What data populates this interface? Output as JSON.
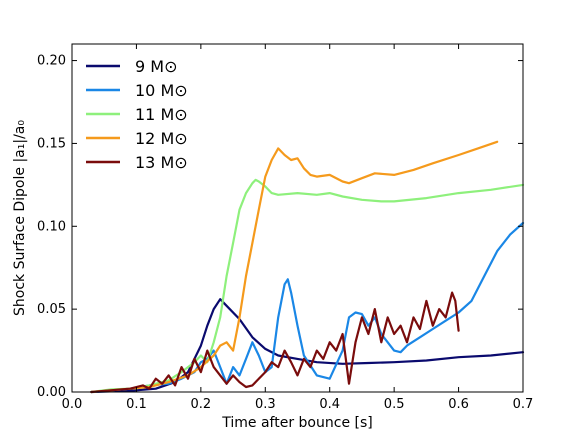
{
  "chart_data": {
    "type": "line",
    "xlabel": "Time after bounce [s]",
    "ylabel": "Shock Surface Dipole |a₁|/a₀",
    "xlim": [
      0.0,
      0.7
    ],
    "ylim": [
      0.0,
      0.21
    ],
    "xticks": [
      "0.0",
      "0.1",
      "0.2",
      "0.3",
      "0.4",
      "0.5",
      "0.6",
      "0.7"
    ],
    "yticks": [
      "0.00",
      "0.05",
      "0.10",
      "0.15",
      "0.20"
    ],
    "grid": false,
    "legend_position": "top-left",
    "series": [
      {
        "name": "9 M⊙",
        "color": "#0a0a6e",
        "points": [
          [
            0.03,
            0.0
          ],
          [
            0.07,
            0.0005
          ],
          [
            0.1,
            0.001
          ],
          [
            0.13,
            0.002
          ],
          [
            0.16,
            0.006
          ],
          [
            0.18,
            0.012
          ],
          [
            0.2,
            0.028
          ],
          [
            0.21,
            0.04
          ],
          [
            0.22,
            0.05
          ],
          [
            0.23,
            0.056
          ],
          [
            0.24,
            0.052
          ],
          [
            0.26,
            0.044
          ],
          [
            0.28,
            0.033
          ],
          [
            0.3,
            0.026
          ],
          [
            0.32,
            0.022
          ],
          [
            0.35,
            0.02
          ],
          [
            0.38,
            0.018
          ],
          [
            0.42,
            0.017
          ],
          [
            0.46,
            0.0175
          ],
          [
            0.5,
            0.018
          ],
          [
            0.55,
            0.019
          ],
          [
            0.6,
            0.021
          ],
          [
            0.65,
            0.022
          ],
          [
            0.7,
            0.024
          ]
        ]
      },
      {
        "name": "10 M⊙",
        "color": "#1a87e6",
        "points": [
          [
            0.03,
            0.0
          ],
          [
            0.06,
            0.001
          ],
          [
            0.09,
            0.002
          ],
          [
            0.12,
            0.004
          ],
          [
            0.15,
            0.005
          ],
          [
            0.17,
            0.008
          ],
          [
            0.19,
            0.012
          ],
          [
            0.2,
            0.018
          ],
          [
            0.21,
            0.02
          ],
          [
            0.22,
            0.025
          ],
          [
            0.23,
            0.015
          ],
          [
            0.24,
            0.005
          ],
          [
            0.25,
            0.015
          ],
          [
            0.26,
            0.01
          ],
          [
            0.27,
            0.02
          ],
          [
            0.28,
            0.03
          ],
          [
            0.29,
            0.022
          ],
          [
            0.3,
            0.012
          ],
          [
            0.31,
            0.015
          ],
          [
            0.32,
            0.045
          ],
          [
            0.33,
            0.065
          ],
          [
            0.335,
            0.068
          ],
          [
            0.34,
            0.06
          ],
          [
            0.35,
            0.04
          ],
          [
            0.36,
            0.022
          ],
          [
            0.38,
            0.01
          ],
          [
            0.4,
            0.008
          ],
          [
            0.42,
            0.025
          ],
          [
            0.43,
            0.045
          ],
          [
            0.44,
            0.048
          ],
          [
            0.45,
            0.047
          ],
          [
            0.46,
            0.04
          ],
          [
            0.47,
            0.045
          ],
          [
            0.48,
            0.035
          ],
          [
            0.49,
            0.03
          ],
          [
            0.5,
            0.025
          ],
          [
            0.51,
            0.024
          ],
          [
            0.52,
            0.028
          ],
          [
            0.54,
            0.033
          ],
          [
            0.56,
            0.038
          ],
          [
            0.58,
            0.043
          ],
          [
            0.6,
            0.048
          ],
          [
            0.62,
            0.055
          ],
          [
            0.64,
            0.07
          ],
          [
            0.66,
            0.085
          ],
          [
            0.68,
            0.095
          ],
          [
            0.7,
            0.102
          ]
        ]
      },
      {
        "name": "11 M⊙",
        "color": "#8ef07c",
        "points": [
          [
            0.03,
            0.0
          ],
          [
            0.06,
            0.0015
          ],
          [
            0.09,
            0.002
          ],
          [
            0.12,
            0.004
          ],
          [
            0.15,
            0.007
          ],
          [
            0.17,
            0.012
          ],
          [
            0.19,
            0.018
          ],
          [
            0.2,
            0.022
          ],
          [
            0.21,
            0.018
          ],
          [
            0.22,
            0.03
          ],
          [
            0.23,
            0.045
          ],
          [
            0.24,
            0.07
          ],
          [
            0.25,
            0.09
          ],
          [
            0.26,
            0.11
          ],
          [
            0.27,
            0.12
          ],
          [
            0.28,
            0.126
          ],
          [
            0.285,
            0.128
          ],
          [
            0.29,
            0.127
          ],
          [
            0.3,
            0.124
          ],
          [
            0.31,
            0.12
          ],
          [
            0.32,
            0.119
          ],
          [
            0.35,
            0.12
          ],
          [
            0.38,
            0.119
          ],
          [
            0.4,
            0.12
          ],
          [
            0.42,
            0.118
          ],
          [
            0.45,
            0.116
          ],
          [
            0.48,
            0.115
          ],
          [
            0.5,
            0.115
          ],
          [
            0.55,
            0.117
          ],
          [
            0.6,
            0.12
          ],
          [
            0.65,
            0.122
          ],
          [
            0.7,
            0.125
          ]
        ]
      },
      {
        "name": "12 M⊙",
        "color": "#f59a1c",
        "points": [
          [
            0.03,
            0.0
          ],
          [
            0.06,
            0.001
          ],
          [
            0.09,
            0.002
          ],
          [
            0.12,
            0.003
          ],
          [
            0.15,
            0.006
          ],
          [
            0.18,
            0.01
          ],
          [
            0.2,
            0.015
          ],
          [
            0.22,
            0.022
          ],
          [
            0.23,
            0.028
          ],
          [
            0.24,
            0.03
          ],
          [
            0.25,
            0.025
          ],
          [
            0.26,
            0.045
          ],
          [
            0.27,
            0.07
          ],
          [
            0.28,
            0.09
          ],
          [
            0.29,
            0.11
          ],
          [
            0.3,
            0.13
          ],
          [
            0.31,
            0.14
          ],
          [
            0.32,
            0.147
          ],
          [
            0.33,
            0.143
          ],
          [
            0.34,
            0.14
          ],
          [
            0.35,
            0.141
          ],
          [
            0.36,
            0.135
          ],
          [
            0.37,
            0.131
          ],
          [
            0.38,
            0.13
          ],
          [
            0.4,
            0.131
          ],
          [
            0.42,
            0.127
          ],
          [
            0.43,
            0.126
          ],
          [
            0.45,
            0.129
          ],
          [
            0.47,
            0.132
          ],
          [
            0.5,
            0.131
          ],
          [
            0.53,
            0.134
          ],
          [
            0.56,
            0.138
          ],
          [
            0.6,
            0.143
          ],
          [
            0.63,
            0.147
          ],
          [
            0.66,
            0.151
          ]
        ]
      },
      {
        "name": "13 M⊙",
        "color": "#7a0c0c",
        "points": [
          [
            0.03,
            0.0
          ],
          [
            0.06,
            0.001
          ],
          [
            0.09,
            0.002
          ],
          [
            0.11,
            0.004
          ],
          [
            0.12,
            0.002
          ],
          [
            0.13,
            0.008
          ],
          [
            0.14,
            0.005
          ],
          [
            0.15,
            0.01
          ],
          [
            0.16,
            0.004
          ],
          [
            0.17,
            0.015
          ],
          [
            0.18,
            0.008
          ],
          [
            0.19,
            0.02
          ],
          [
            0.2,
            0.012
          ],
          [
            0.21,
            0.025
          ],
          [
            0.22,
            0.015
          ],
          [
            0.23,
            0.01
          ],
          [
            0.24,
            0.005
          ],
          [
            0.25,
            0.01
          ],
          [
            0.26,
            0.006
          ],
          [
            0.27,
            0.003
          ],
          [
            0.28,
            0.004
          ],
          [
            0.29,
            0.008
          ],
          [
            0.3,
            0.012
          ],
          [
            0.31,
            0.018
          ],
          [
            0.32,
            0.015
          ],
          [
            0.33,
            0.025
          ],
          [
            0.34,
            0.018
          ],
          [
            0.35,
            0.01
          ],
          [
            0.36,
            0.02
          ],
          [
            0.37,
            0.015
          ],
          [
            0.38,
            0.025
          ],
          [
            0.39,
            0.02
          ],
          [
            0.4,
            0.03
          ],
          [
            0.41,
            0.025
          ],
          [
            0.42,
            0.035
          ],
          [
            0.43,
            0.005
          ],
          [
            0.44,
            0.03
          ],
          [
            0.45,
            0.045
          ],
          [
            0.46,
            0.035
          ],
          [
            0.47,
            0.05
          ],
          [
            0.48,
            0.03
          ],
          [
            0.49,
            0.045
          ],
          [
            0.5,
            0.035
          ],
          [
            0.51,
            0.04
          ],
          [
            0.52,
            0.03
          ],
          [
            0.53,
            0.045
          ],
          [
            0.54,
            0.038
          ],
          [
            0.55,
            0.055
          ],
          [
            0.56,
            0.04
          ],
          [
            0.57,
            0.05
          ],
          [
            0.58,
            0.045
          ],
          [
            0.59,
            0.06
          ],
          [
            0.595,
            0.055
          ],
          [
            0.6,
            0.037
          ]
        ]
      }
    ]
  }
}
